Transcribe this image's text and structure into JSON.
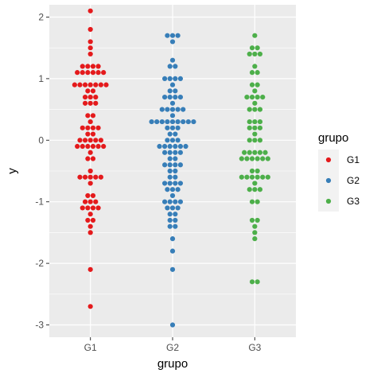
{
  "chart_data": {
    "type": "scatter",
    "style": "dotplot",
    "xlabel": "grupo",
    "ylabel": "y",
    "categories": [
      "G1",
      "G2",
      "G3"
    ],
    "ylim": [
      -3.2,
      2.2
    ],
    "yticks": [
      -3,
      -2,
      -1,
      0,
      1,
      2
    ],
    "ytick_labels": [
      "-3",
      "-2",
      "-1",
      "0",
      "1",
      "2"
    ],
    "grid": true,
    "background": "#ebebeb",
    "legend": {
      "title": "grupo",
      "position": "right",
      "entries": [
        {
          "label": "G1",
          "color": "#e41a1c"
        },
        {
          "label": "G2",
          "color": "#377eb8"
        },
        {
          "label": "G3",
          "color": "#4daf4a"
        }
      ]
    },
    "series": [
      {
        "name": "G1",
        "color": "#e41a1c",
        "values": [
          2.1,
          1.8,
          1.6,
          1.5,
          1.4,
          1.2,
          1.2,
          1.2,
          1.2,
          1.1,
          1.1,
          1.1,
          1.1,
          1.1,
          1.1,
          0.9,
          0.9,
          0.9,
          0.9,
          0.9,
          0.9,
          0.9,
          0.8,
          0.8,
          0.7,
          0.7,
          0.7,
          0.6,
          0.6,
          0.6,
          0.4,
          0.4,
          0.3,
          0.2,
          0.2,
          0.2,
          0.2,
          0.1,
          0.1,
          0.0,
          0.0,
          0.0,
          0.0,
          0.0,
          -0.1,
          -0.1,
          -0.1,
          -0.1,
          -0.1,
          -0.1,
          -0.2,
          -0.3,
          -0.3,
          -0.5,
          -0.6,
          -0.6,
          -0.6,
          -0.6,
          -0.6,
          -0.7,
          -0.9,
          -0.9,
          -1.0,
          -1.0,
          -1.0,
          -1.1,
          -1.1,
          -1.1,
          -1.1,
          -1.2,
          -1.3,
          -1.3,
          -1.4,
          -1.5,
          -2.1,
          -2.7
        ]
      },
      {
        "name": "G2",
        "color": "#377eb8",
        "values": [
          1.7,
          1.7,
          1.7,
          1.6,
          1.3,
          1.2,
          1.2,
          1.0,
          1.0,
          1.0,
          1.0,
          0.9,
          0.8,
          0.8,
          0.7,
          0.7,
          0.7,
          0.7,
          0.6,
          0.5,
          0.5,
          0.5,
          0.5,
          0.5,
          0.4,
          0.3,
          0.3,
          0.3,
          0.3,
          0.3,
          0.3,
          0.3,
          0.3,
          0.3,
          0.2,
          0.2,
          0.2,
          0.1,
          0.1,
          0.0,
          0.0,
          0.0,
          -0.1,
          -0.1,
          -0.1,
          -0.1,
          -0.1,
          -0.1,
          -0.2,
          -0.2,
          -0.2,
          -0.2,
          -0.3,
          -0.3,
          -0.4,
          -0.4,
          -0.4,
          -0.4,
          -0.5,
          -0.5,
          -0.6,
          -0.6,
          -0.7,
          -0.7,
          -0.7,
          -0.7,
          -0.8,
          -0.8,
          -0.8,
          -0.9,
          -1.0,
          -1.0,
          -1.0,
          -1.0,
          -1.1,
          -1.1,
          -1.1,
          -1.2,
          -1.2,
          -1.3,
          -1.3,
          -1.4,
          -1.4,
          -1.6,
          -1.8,
          -2.1,
          -3.0
        ]
      },
      {
        "name": "G3",
        "color": "#4daf4a",
        "values": [
          1.7,
          1.5,
          1.5,
          1.4,
          1.4,
          1.4,
          1.2,
          1.1,
          1.1,
          0.9,
          0.9,
          0.8,
          0.7,
          0.7,
          0.7,
          0.7,
          0.6,
          0.5,
          0.5,
          0.5,
          0.3,
          0.3,
          0.3,
          0.2,
          0.2,
          0.2,
          0.1,
          0.0,
          0.0,
          0.0,
          -0.2,
          -0.2,
          -0.2,
          -0.2,
          -0.2,
          -0.3,
          -0.3,
          -0.3,
          -0.3,
          -0.3,
          -0.3,
          -0.5,
          -0.5,
          -0.6,
          -0.6,
          -0.6,
          -0.6,
          -0.6,
          -0.6,
          -0.7,
          -0.8,
          -0.8,
          -0.8,
          -1.0,
          -1.0,
          -1.3,
          -1.3,
          -1.4,
          -1.5,
          -1.6,
          -2.3,
          -2.3
        ]
      }
    ]
  }
}
